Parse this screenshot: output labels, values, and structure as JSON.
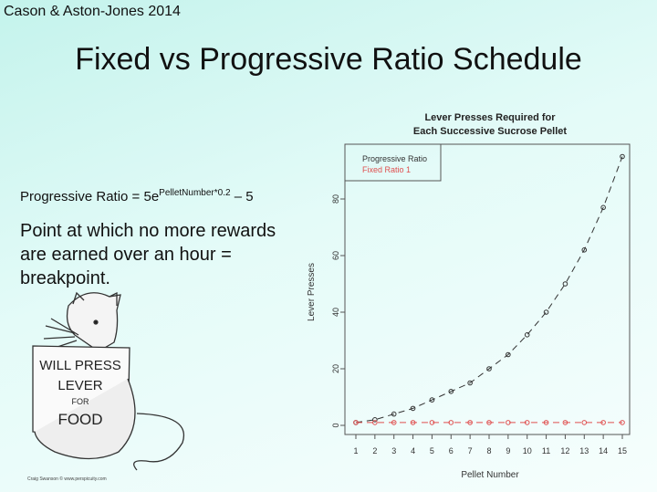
{
  "slide": {
    "citation": "Cason & Aston-Jones 2014",
    "title": "Fixed vs Progressive Ratio Schedule",
    "formula": {
      "label": "Progressive Ratio = ",
      "base": "5e",
      "exponent": "PelletNumber*0.2",
      "tail": " – 5"
    },
    "breakpoint_text": "Point at which no more rewards are earned over an hour = breakpoint.",
    "cartoon": {
      "sign_lines": [
        "WILL PRESS",
        "LEVER",
        "FOR",
        "FOOD"
      ],
      "credit": "Craig Swanson © www.perspicuity.com"
    }
  },
  "chart_data": {
    "type": "line",
    "title_lines": [
      "Lever Presses Required for",
      "Each Successive Sucrose Pellet"
    ],
    "xlabel": "Pellet Number",
    "ylabel": "Lever Presses",
    "x": [
      1,
      2,
      3,
      4,
      5,
      6,
      7,
      8,
      9,
      10,
      11,
      12,
      13,
      14,
      15
    ],
    "xlim": [
      1,
      15
    ],
    "ylim": [
      0,
      95
    ],
    "yticks": [
      0,
      20,
      40,
      60,
      80
    ],
    "grid": false,
    "legend_position": "top-left",
    "series": [
      {
        "name": "Progressive Ratio",
        "color": "#333333",
        "values": [
          1,
          2,
          4,
          6,
          9,
          12,
          15,
          20,
          25,
          32,
          40,
          50,
          62,
          77,
          95
        ]
      },
      {
        "name": "Fixed Ratio 1",
        "color": "#e05050",
        "values": [
          1,
          1,
          1,
          1,
          1,
          1,
          1,
          1,
          1,
          1,
          1,
          1,
          1,
          1,
          1
        ]
      }
    ]
  }
}
